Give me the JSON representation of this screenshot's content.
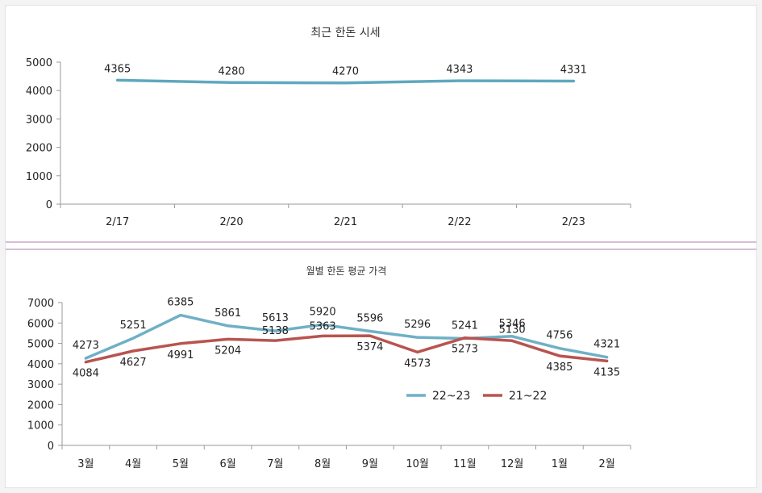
{
  "chart_data": [
    {
      "type": "line",
      "title": "최근 한돈 시세",
      "categories": [
        "2/17",
        "2/20",
        "2/21",
        "2/22",
        "2/23"
      ],
      "series": [
        {
          "values": [
            4365,
            4280,
            4270,
            4343,
            4331
          ],
          "color": "#5fa8be"
        }
      ],
      "yticks": [
        "0",
        "1000",
        "2000",
        "3000",
        "4000",
        "5000"
      ],
      "ylim": [
        0,
        5000
      ],
      "xlabel": "",
      "ylabel": "",
      "grid": false,
      "legend": "none"
    },
    {
      "type": "line",
      "title": "월별 한돈 평균 가격",
      "categories": [
        "3월",
        "4월",
        "5월",
        "6월",
        "7월",
        "8월",
        "9월",
        "10월",
        "11월",
        "12월",
        "1월",
        "2월"
      ],
      "series": [
        {
          "name": "22~23",
          "values": [
            4273,
            5251,
            6385,
            5861,
            5613,
            5920,
            5596,
            5296,
            5241,
            5346,
            4756,
            4321
          ],
          "color": "#6fb0c6"
        },
        {
          "name": "21~22",
          "values": [
            4084,
            4627,
            4991,
            5204,
            5138,
            5363,
            5374,
            4573,
            5273,
            5130,
            4385,
            4135
          ],
          "color": "#b85450"
        }
      ],
      "yticks": [
        "0",
        "1000",
        "2000",
        "3000",
        "4000",
        "5000",
        "6000",
        "7000"
      ],
      "ylim": [
        0,
        7000
      ],
      "xlabel": "",
      "ylabel": "",
      "grid": false,
      "legend": "right"
    }
  ]
}
